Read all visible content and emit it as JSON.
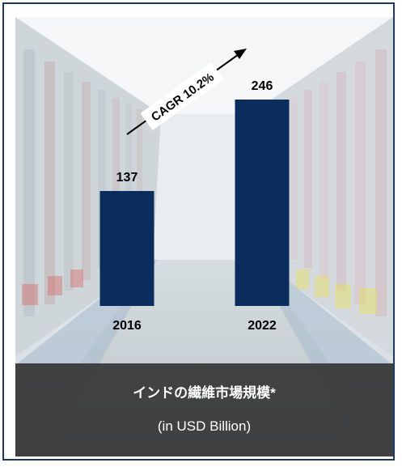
{
  "chart_data": {
    "type": "bar",
    "categories": [
      "2016",
      "2022"
    ],
    "values": [
      137,
      246
    ],
    "title": "インドの繊維市場規模*",
    "subtitle": "(in USD Billion)",
    "annotation": "CAGR 10.2%",
    "bar_color": "#0a2d5e"
  }
}
